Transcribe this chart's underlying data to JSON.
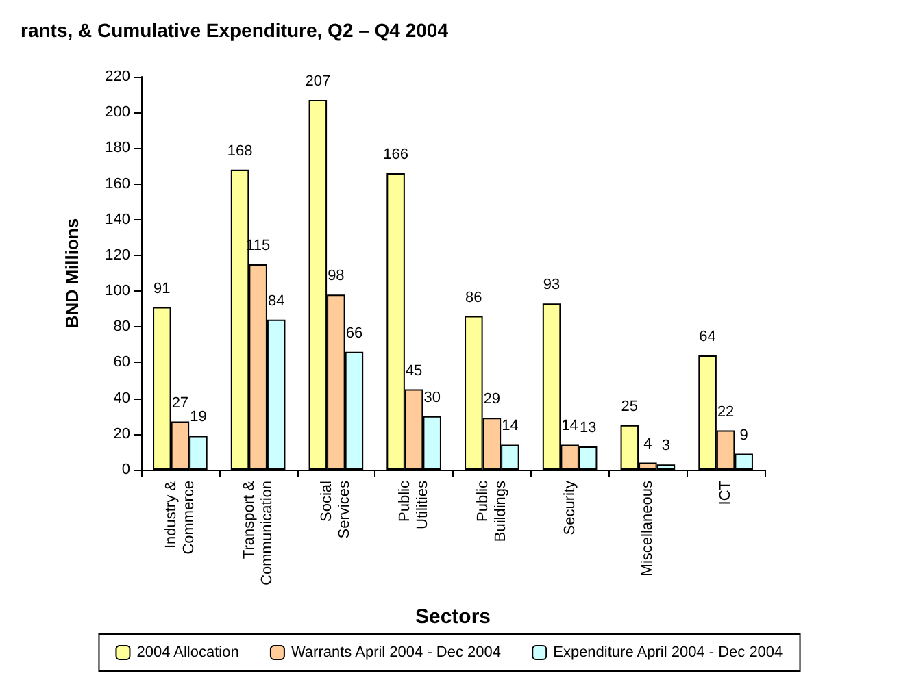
{
  "chart_data": {
    "type": "bar",
    "title": "rants, & Cumulative Expenditure, Q2 – Q4 2004",
    "xlabel": "Sectors",
    "ylabel": "BND Millions",
    "categories": [
      "Industry &\nCommerce",
      "Transport &\nCommunication",
      "Social\nServices",
      "Public\nUtilities",
      "Public\nBuildings",
      "Security",
      "Miscellaneous",
      "ICT"
    ],
    "series": [
      {
        "name": "2004 Allocation",
        "color": "#ffff99",
        "values": [
          91,
          168,
          207,
          166,
          86,
          93,
          25,
          64
        ]
      },
      {
        "name": "Warrants April 2004 - Dec 2004",
        "color": "#ffcc99",
        "values": [
          27,
          115,
          98,
          45,
          29,
          14,
          4,
          22
        ]
      },
      {
        "name": "Expenditure April 2004 - Dec 2004",
        "color": "#ccffff",
        "values": [
          19,
          84,
          66,
          30,
          14,
          13,
          3,
          9
        ]
      }
    ],
    "ylim": [
      0,
      220
    ],
    "yticks": [
      0,
      20,
      40,
      60,
      80,
      100,
      120,
      140,
      160,
      180,
      200,
      220
    ],
    "data_labels": true,
    "grid": false,
    "legend": "bottom"
  }
}
